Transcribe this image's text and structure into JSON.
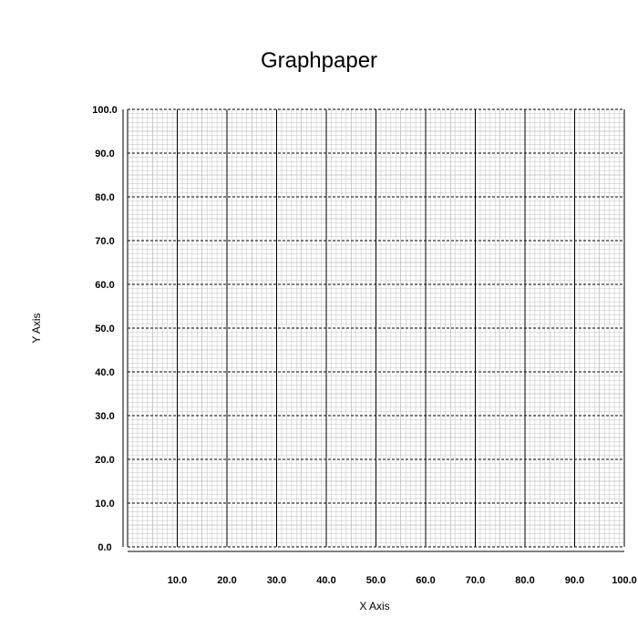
{
  "chart_data": {
    "type": "scatter",
    "title": "Graphpaper",
    "xlabel": "X Axis",
    "ylabel": "Y Axis",
    "xlim": [
      0,
      100
    ],
    "ylim": [
      0,
      100
    ],
    "x_ticks": [
      "10.0",
      "20.0",
      "30.0",
      "40.0",
      "50.0",
      "60.0",
      "70.0",
      "80.0",
      "90.0",
      "100.0"
    ],
    "x_tick_values": [
      10,
      20,
      30,
      40,
      50,
      60,
      70,
      80,
      90,
      100
    ],
    "y_ticks": [
      "0.0",
      "10.0",
      "20.0",
      "30.0",
      "40.0",
      "50.0",
      "60.0",
      "70.0",
      "80.0",
      "90.0",
      "100.0"
    ],
    "y_tick_values": [
      0,
      10,
      20,
      30,
      40,
      50,
      60,
      70,
      80,
      90,
      100
    ],
    "grid": true,
    "major_grid_step": 10,
    "minor_grid_step": 1,
    "series": [],
    "colors": {
      "major_x_grid": "#000000",
      "major_y_grid": "#000000",
      "minor_grid": "#c0c0c0",
      "medium_grid": "#9a9a9a",
      "axis": "#000000"
    }
  }
}
